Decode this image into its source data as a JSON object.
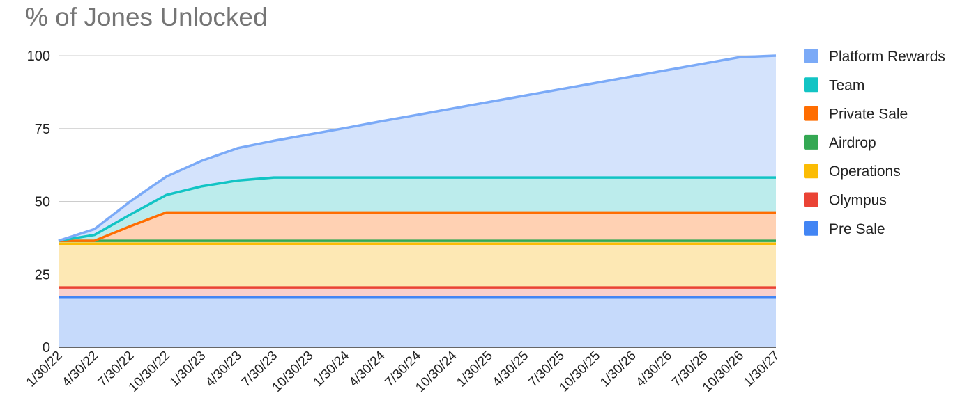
{
  "chart_data": {
    "type": "area",
    "title": "% of Jones Unlocked",
    "stacked": true,
    "ylim": [
      0,
      100
    ],
    "yticks": [
      0,
      25,
      50,
      75,
      100
    ],
    "grid": true,
    "legend_position": "right",
    "x": [
      "1/30/22",
      "4/30/22",
      "7/30/22",
      "10/30/22",
      "1/30/23",
      "4/30/23",
      "7/30/23",
      "10/30/23",
      "1/30/24",
      "4/30/24",
      "7/30/24",
      "10/30/24",
      "1/30/25",
      "4/30/25",
      "7/30/25",
      "10/30/25",
      "1/30/26",
      "4/30/26",
      "7/30/26",
      "10/30/26",
      "1/30/27"
    ],
    "series": [
      {
        "name": "Pre Sale",
        "color": "#4285f4",
        "fill": "#c6dafb",
        "values": [
          17,
          17,
          17,
          17,
          17,
          17,
          17,
          17,
          17,
          17,
          17,
          17,
          17,
          17,
          17,
          17,
          17,
          17,
          17,
          17,
          17
        ]
      },
      {
        "name": "Olympus",
        "color": "#ea4335",
        "fill": "#f9d0cc",
        "values": [
          3.5,
          3.5,
          3.5,
          3.5,
          3.5,
          3.5,
          3.5,
          3.5,
          3.5,
          3.5,
          3.5,
          3.5,
          3.5,
          3.5,
          3.5,
          3.5,
          3.5,
          3.5,
          3.5,
          3.5,
          3.5
        ]
      },
      {
        "name": "Operations",
        "color": "#fbbc04",
        "fill": "#fde8b4",
        "values": [
          15,
          15,
          15,
          15,
          15,
          15,
          15,
          15,
          15,
          15,
          15,
          15,
          15,
          15,
          15,
          15,
          15,
          15,
          15,
          15,
          15
        ]
      },
      {
        "name": "Airdrop",
        "color": "#34a853",
        "fill": "#c8e6cf",
        "values": [
          1,
          1,
          1,
          1,
          1,
          1,
          1,
          1,
          1,
          1,
          1,
          1,
          1,
          1,
          1,
          1,
          1,
          1,
          1,
          1,
          1
        ]
      },
      {
        "name": "Private Sale",
        "color": "#ff6d01",
        "fill": "#ffd1b3",
        "values": [
          0,
          0,
          5,
          9.7,
          9.7,
          9.7,
          9.7,
          9.7,
          9.7,
          9.7,
          9.7,
          9.7,
          9.7,
          9.7,
          9.7,
          9.7,
          9.7,
          9.7,
          9.7,
          9.7,
          9.7
        ]
      },
      {
        "name": "Team",
        "color": "#12c4c4",
        "fill": "#bcecec",
        "values": [
          0,
          2,
          4,
          6,
          9,
          11,
          12,
          12,
          12,
          12,
          12,
          12,
          12,
          12,
          12,
          12,
          12,
          12,
          12,
          12,
          12
        ]
      },
      {
        "name": "Platform Rewards",
        "color": "#7baaf7",
        "fill": "#d4e3fc",
        "values": [
          0,
          2,
          4.5,
          6.3,
          8.8,
          11.1,
          12.6,
          14.8,
          17,
          19.3,
          21.5,
          23.7,
          25.9,
          28.1,
          30.3,
          32.5,
          34.7,
          36.9,
          39.1,
          41.3,
          41.8
        ]
      }
    ]
  }
}
